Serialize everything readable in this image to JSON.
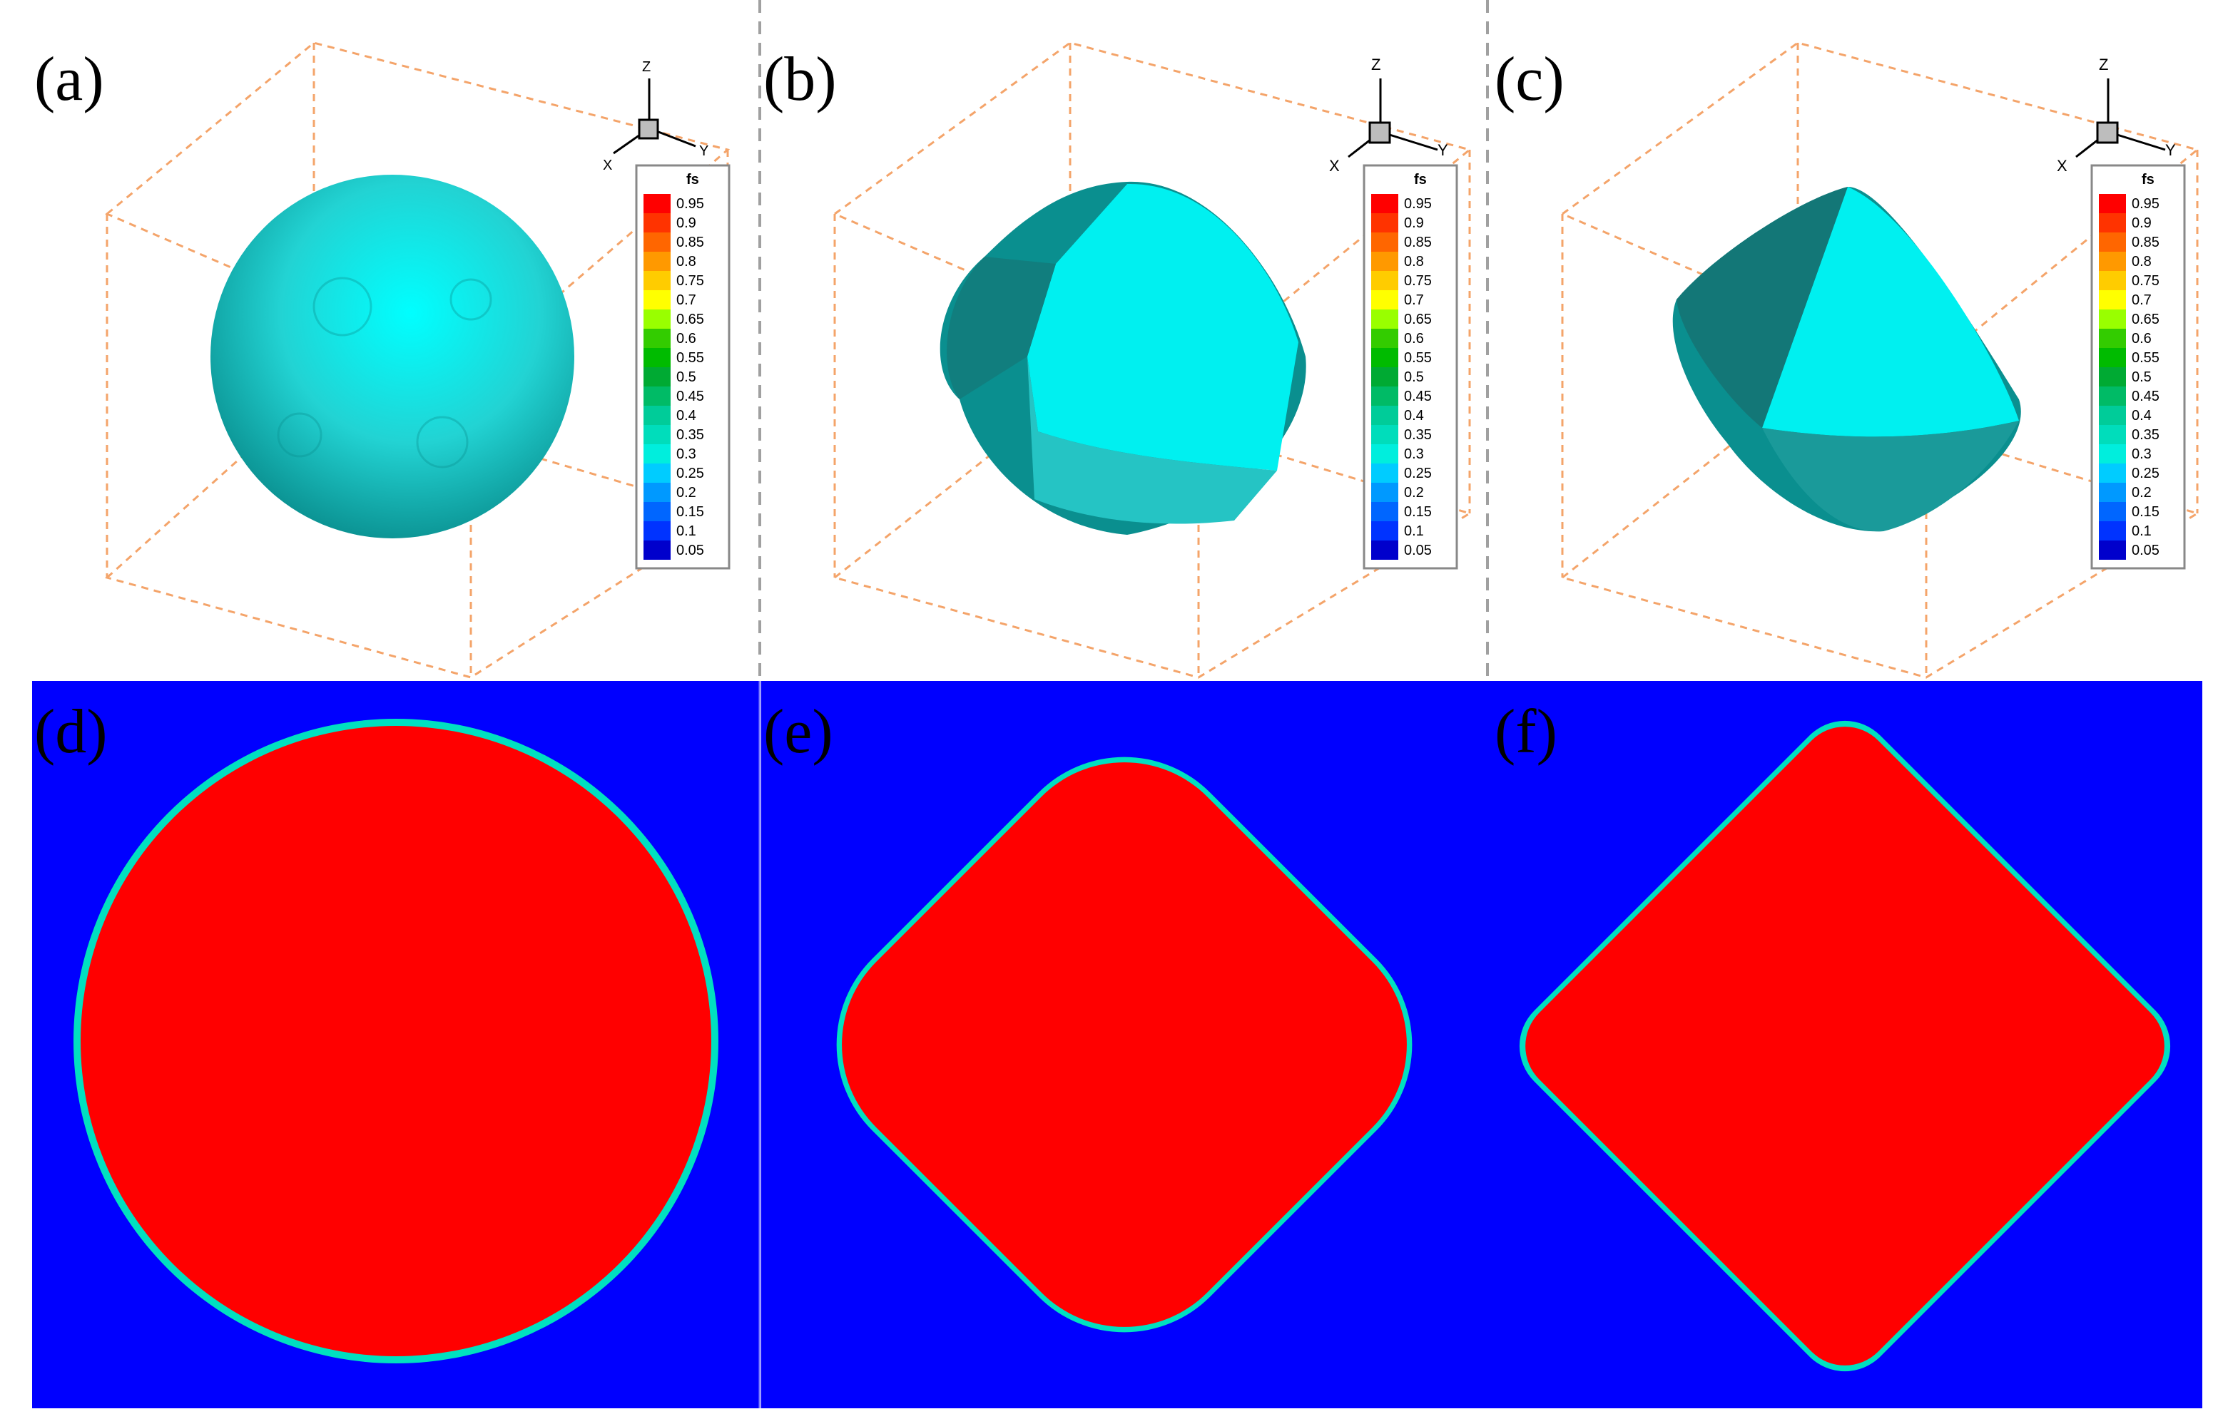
{
  "panels_top": [
    {
      "label": "(a)",
      "shape": "sphere",
      "axes": {
        "z": "Z",
        "x": "X",
        "y": "Y"
      }
    },
    {
      "label": "(b)",
      "shape": "rounded-octahedron",
      "axes": {
        "z": "Z",
        "x": "X",
        "y": "Y"
      }
    },
    {
      "label": "(c)",
      "shape": "octahedron",
      "axes": {
        "z": "Z",
        "x": "X",
        "y": "Y"
      }
    }
  ],
  "panels_bottom": [
    {
      "label": "(d)",
      "shape": "circle"
    },
    {
      "label": "(e)",
      "shape": "rounded-square"
    },
    {
      "label": "(f)",
      "shape": "diamond"
    }
  ],
  "legend": {
    "title": "fs",
    "values": [
      "0.95",
      "0.9",
      "0.85",
      "0.8",
      "0.75",
      "0.7",
      "0.65",
      "0.6",
      "0.55",
      "0.5",
      "0.45",
      "0.4",
      "0.35",
      "0.3",
      "0.25",
      "0.2",
      "0.15",
      "0.1",
      "0.05"
    ],
    "colors": [
      "#ff0000",
      "#ff3300",
      "#ff6600",
      "#ff9900",
      "#ffcc00",
      "#ffff00",
      "#99ff00",
      "#33cc00",
      "#00bb00",
      "#00aa33",
      "#00bb66",
      "#00cc99",
      "#00ddbb",
      "#00eedd",
      "#00ccff",
      "#0099ff",
      "#0066ff",
      "#0033ff",
      "#0000cc"
    ]
  },
  "colors": {
    "solid": "#ff0000",
    "liquid": "#0000ff",
    "interface": "#00e0c0",
    "surface": "#00e5e5",
    "surface_dark": "#008b8b",
    "box": "#f4a46a"
  }
}
